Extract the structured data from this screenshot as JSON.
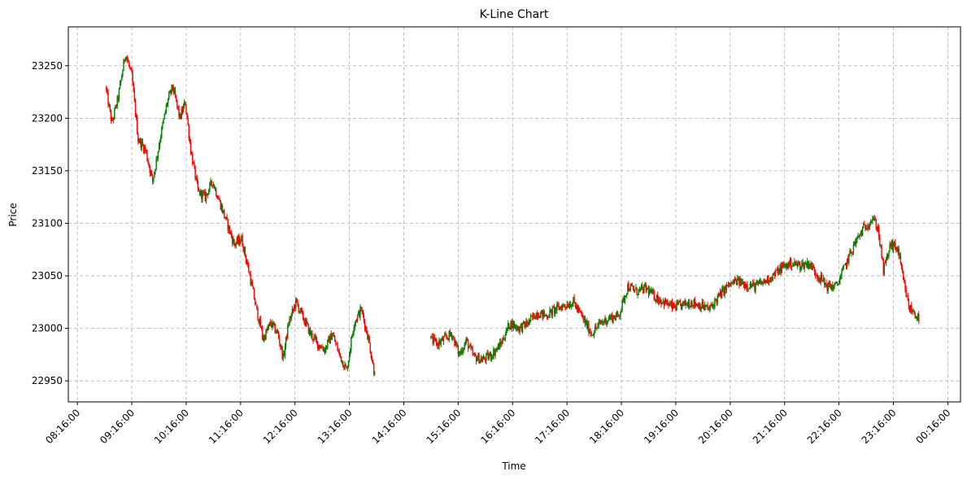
{
  "chart_data": {
    "type": "candlestick",
    "title": "K-Line Chart",
    "xlabel": "Time",
    "ylabel": "Price",
    "ylim": [
      22930,
      23287
    ],
    "xlim": [
      "08:06:00",
      "00:30:00"
    ],
    "grid": true,
    "up_color": "#008000",
    "down_color": "#ff0000",
    "x_ticks": [
      "08:16:00",
      "09:16:00",
      "10:16:00",
      "11:16:00",
      "12:16:00",
      "13:16:00",
      "14:16:00",
      "15:16:00",
      "16:16:00",
      "17:16:00",
      "18:16:00",
      "19:16:00",
      "20:16:00",
      "21:16:00",
      "22:16:00",
      "23:16:00",
      "00:16:00"
    ],
    "y_ticks": [
      22950,
      23000,
      23050,
      23100,
      23150,
      23200,
      23250
    ],
    "sessions": [
      {
        "start": "08:48:00",
        "end": "13:44:00",
        "path": [
          [
            "08:48:00",
            23230
          ],
          [
            "08:55:00",
            23195
          ],
          [
            "09:02:00",
            23220
          ],
          [
            "09:10:00",
            23262
          ],
          [
            "09:17:00",
            23240
          ],
          [
            "09:24:00",
            23180
          ],
          [
            "09:32:00",
            23170
          ],
          [
            "09:40:00",
            23140
          ],
          [
            "09:48:00",
            23180
          ],
          [
            "09:56:00",
            23215
          ],
          [
            "10:02:00",
            23230
          ],
          [
            "10:10:00",
            23200
          ],
          [
            "10:16:00",
            23215
          ],
          [
            "10:22:00",
            23170
          ],
          [
            "10:30:00",
            23130
          ],
          [
            "10:38:00",
            23125
          ],
          [
            "10:46:00",
            23140
          ],
          [
            "10:54:00",
            23120
          ],
          [
            "11:02:00",
            23100
          ],
          [
            "11:10:00",
            23080
          ],
          [
            "11:18:00",
            23085
          ],
          [
            "11:26:00",
            23055
          ],
          [
            "11:34:00",
            23020
          ],
          [
            "11:42:00",
            22990
          ],
          [
            "11:50:00",
            23005
          ],
          [
            "11:58:00",
            22995
          ],
          [
            "12:04:00",
            22972
          ],
          [
            "12:10:00",
            23005
          ],
          [
            "12:18:00",
            23025
          ],
          [
            "12:26:00",
            23010
          ],
          [
            "12:34:00",
            22995
          ],
          [
            "12:42:00",
            22985
          ],
          [
            "12:50:00",
            22980
          ],
          [
            "12:58:00",
            22995
          ],
          [
            "13:06:00",
            22975
          ],
          [
            "13:14:00",
            22960
          ],
          [
            "13:22:00",
            23005
          ],
          [
            "13:30:00",
            23018
          ],
          [
            "13:38:00",
            22990
          ],
          [
            "13:44:00",
            22960
          ]
        ]
      },
      {
        "start": "14:46:00",
        "end": "23:44:00",
        "path": [
          [
            "14:46:00",
            22990
          ],
          [
            "14:54:00",
            22985
          ],
          [
            "15:02:00",
            22990
          ],
          [
            "15:10:00",
            22995
          ],
          [
            "15:18:00",
            22975
          ],
          [
            "15:26:00",
            22988
          ],
          [
            "15:34:00",
            22973
          ],
          [
            "15:44:00",
            22970
          ],
          [
            "15:54:00",
            22975
          ],
          [
            "16:04:00",
            22985
          ],
          [
            "16:14:00",
            23005
          ],
          [
            "16:24:00",
            23000
          ],
          [
            "16:34:00",
            23005
          ],
          [
            "16:44:00",
            23015
          ],
          [
            "16:54:00",
            23012
          ],
          [
            "17:04:00",
            23018
          ],
          [
            "17:14:00",
            23022
          ],
          [
            "17:24:00",
            23025
          ],
          [
            "17:34:00",
            23010
          ],
          [
            "17:44:00",
            22995
          ],
          [
            "17:54:00",
            23005
          ],
          [
            "18:04:00",
            23010
          ],
          [
            "18:14:00",
            23012
          ],
          [
            "18:24:00",
            23040
          ],
          [
            "18:34:00",
            23035
          ],
          [
            "18:44:00",
            23038
          ],
          [
            "18:54:00",
            23030
          ],
          [
            "19:04:00",
            23025
          ],
          [
            "19:14:00",
            23020
          ],
          [
            "19:24:00",
            23022
          ],
          [
            "19:34:00",
            23025
          ],
          [
            "19:44:00",
            23022
          ],
          [
            "19:54:00",
            23018
          ],
          [
            "20:04:00",
            23030
          ],
          [
            "20:14:00",
            23040
          ],
          [
            "20:24:00",
            23045
          ],
          [
            "20:34:00",
            23042
          ],
          [
            "20:44:00",
            23040
          ],
          [
            "20:54:00",
            23044
          ],
          [
            "21:04:00",
            23050
          ],
          [
            "21:14:00",
            23058
          ],
          [
            "21:24:00",
            23062
          ],
          [
            "21:34:00",
            23060
          ],
          [
            "21:44:00",
            23062
          ],
          [
            "21:54:00",
            23050
          ],
          [
            "22:04:00",
            23040
          ],
          [
            "22:14:00",
            23040
          ],
          [
            "22:24:00",
            23060
          ],
          [
            "22:34:00",
            23080
          ],
          [
            "22:44:00",
            23095
          ],
          [
            "22:54:00",
            23105
          ],
          [
            "23:00:00",
            23095
          ],
          [
            "23:06:00",
            23055
          ],
          [
            "23:14:00",
            23080
          ],
          [
            "23:22:00",
            23075
          ],
          [
            "23:28:00",
            23045
          ],
          [
            "23:34:00",
            23020
          ],
          [
            "23:40:00",
            23015
          ],
          [
            "23:44:00",
            23010
          ]
        ]
      }
    ]
  }
}
